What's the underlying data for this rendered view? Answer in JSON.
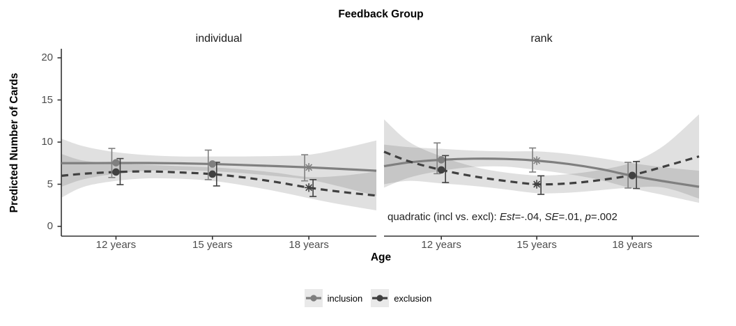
{
  "chart_data": {
    "type": "line",
    "title": "Feedback Group",
    "xlabel": "Age",
    "ylabel": "Predicted Number of Cards",
    "ylim": [
      0,
      20
    ],
    "yticks": [
      0,
      5,
      10,
      15,
      20
    ],
    "x_tick_labels": [
      "12 years",
      "15 years",
      "18 years"
    ],
    "x_tick_ages": [
      12,
      15,
      18
    ],
    "grid": false,
    "legend_position": "bottom",
    "band_fill": "rgba(60,60,60,0.16)",
    "axis_color": "#333333",
    "legend": [
      {
        "label": "inclusion",
        "color": "#7f7f7f"
      },
      {
        "label": "exclusion",
        "color": "#404040"
      }
    ],
    "series_styles": {
      "inclusion": {
        "color": "#7f7f7f",
        "dash": "solid"
      },
      "exclusion": {
        "color": "#404040",
        "dash": "dashed"
      }
    },
    "facets": [
      {
        "label": "individual",
        "age_range": [
          10.3,
          20.1
        ],
        "series": [
          {
            "name": "inclusion",
            "x": [
              10.3,
              11,
              12,
              13,
              14,
              15,
              16,
              17,
              18,
              19,
              20.1
            ],
            "y": [
              7.5,
              7.5,
              7.52,
              7.52,
              7.48,
              7.4,
              7.28,
              7.15,
              7.0,
              6.82,
              6.6
            ],
            "band_upper": [
              10.4,
              9.5,
              8.8,
              8.45,
              8.3,
              8.3,
              8.3,
              8.35,
              8.5,
              9.2,
              10.2
            ],
            "band_lower": [
              4.7,
              5.6,
              6.25,
              6.6,
              6.65,
              6.55,
              6.3,
              5.95,
              5.55,
              4.7,
              3.6
            ]
          },
          {
            "name": "exclusion",
            "x": [
              10.3,
              11,
              12,
              13,
              14,
              15,
              16,
              17,
              18,
              19,
              20.1
            ],
            "y": [
              6.0,
              6.25,
              6.45,
              6.52,
              6.4,
              6.2,
              5.8,
              5.25,
              4.6,
              4.1,
              3.65
            ],
            "band_upper": [
              8.6,
              7.8,
              7.5,
              7.3,
              7.15,
              7.0,
              6.75,
              6.35,
              5.85,
              6.0,
              6.5
            ],
            "band_lower": [
              3.4,
              4.7,
              5.4,
              5.7,
              5.65,
              5.4,
              4.85,
              4.15,
              3.35,
              2.6,
              1.9
            ]
          }
        ],
        "points": [
          {
            "age": 12,
            "series": "inclusion",
            "y": 7.55,
            "err_low": 5.8,
            "err_high": 9.25,
            "marker": "circle"
          },
          {
            "age": 12,
            "series": "exclusion",
            "y": 6.45,
            "err_low": 4.95,
            "err_high": 8.05,
            "marker": "circle"
          },
          {
            "age": 15,
            "series": "inclusion",
            "y": 7.4,
            "err_low": 5.55,
            "err_high": 9.05,
            "marker": "circle"
          },
          {
            "age": 15,
            "series": "exclusion",
            "y": 6.2,
            "err_low": 4.8,
            "err_high": 7.6,
            "marker": "circle"
          },
          {
            "age": 18,
            "series": "inclusion",
            "y": 7.0,
            "err_low": 5.4,
            "err_high": 8.5,
            "marker": "asterisk"
          },
          {
            "age": 18,
            "series": "exclusion",
            "y": 4.6,
            "err_low": 3.55,
            "err_high": 5.55,
            "marker": "asterisk"
          }
        ],
        "annotation": null
      },
      {
        "label": "rank",
        "age_range": [
          10.2,
          20.1
        ],
        "series": [
          {
            "name": "inclusion",
            "x": [
              10.2,
              11,
              12,
              13,
              14,
              15,
              16,
              17,
              18,
              19,
              20.1
            ],
            "y": [
              7.15,
              7.6,
              7.9,
              8.03,
              8.0,
              7.8,
              7.4,
              6.8,
              6.0,
              5.35,
              4.7
            ],
            "band_upper": [
              9.7,
              9.4,
              9.2,
              9.0,
              8.9,
              8.9,
              8.6,
              8.1,
              7.5,
              7.0,
              6.6
            ],
            "band_lower": [
              4.6,
              5.8,
              6.6,
              7.05,
              7.1,
              6.7,
              6.2,
              5.5,
              4.5,
              3.7,
              2.8
            ]
          },
          {
            "name": "exclusion",
            "x": [
              10.2,
              11,
              12,
              13,
              14,
              15,
              16,
              17,
              18,
              19,
              20.1
            ],
            "y": [
              8.85,
              7.7,
              6.7,
              5.95,
              5.4,
              5.0,
              5.1,
              5.5,
              6.1,
              7.1,
              8.3
            ],
            "band_upper": [
              12.7,
              10.0,
              8.3,
              7.1,
              6.4,
              6.05,
              6.2,
              6.7,
              7.6,
              9.6,
              13.3
            ],
            "band_lower": [
              5.0,
              5.4,
              5.1,
              4.8,
              4.4,
              3.95,
              4.0,
              4.3,
              4.6,
              4.6,
              3.3
            ]
          }
        ],
        "points": [
          {
            "age": 12,
            "series": "inclusion",
            "y": 7.9,
            "err_low": 6.25,
            "err_high": 9.9,
            "marker": "circle"
          },
          {
            "age": 12,
            "series": "exclusion",
            "y": 6.7,
            "err_low": 5.2,
            "err_high": 8.4,
            "marker": "circle"
          },
          {
            "age": 15,
            "series": "inclusion",
            "y": 7.8,
            "err_low": 6.45,
            "err_high": 9.3,
            "marker": "asterisk"
          },
          {
            "age": 15,
            "series": "exclusion",
            "y": 5.0,
            "err_low": 3.8,
            "err_high": 6.0,
            "marker": "asterisk"
          },
          {
            "age": 18,
            "series": "inclusion",
            "y": 6.0,
            "err_low": 4.55,
            "err_high": 7.6,
            "marker": "circle"
          },
          {
            "age": 18,
            "series": "exclusion",
            "y": 6.05,
            "err_low": 4.5,
            "err_high": 7.7,
            "marker": "circle"
          }
        ],
        "annotation": {
          "segments": [
            {
              "text": "quadratic (incl vs. excl): ",
              "italic": false
            },
            {
              "text": "Est",
              "italic": true
            },
            {
              "text": "=-.04, ",
              "italic": false
            },
            {
              "text": "SE",
              "italic": true
            },
            {
              "text": "=.01, ",
              "italic": false
            },
            {
              "text": "p",
              "italic": true
            },
            {
              "text": "=.002",
              "italic": false
            }
          ]
        }
      }
    ]
  }
}
